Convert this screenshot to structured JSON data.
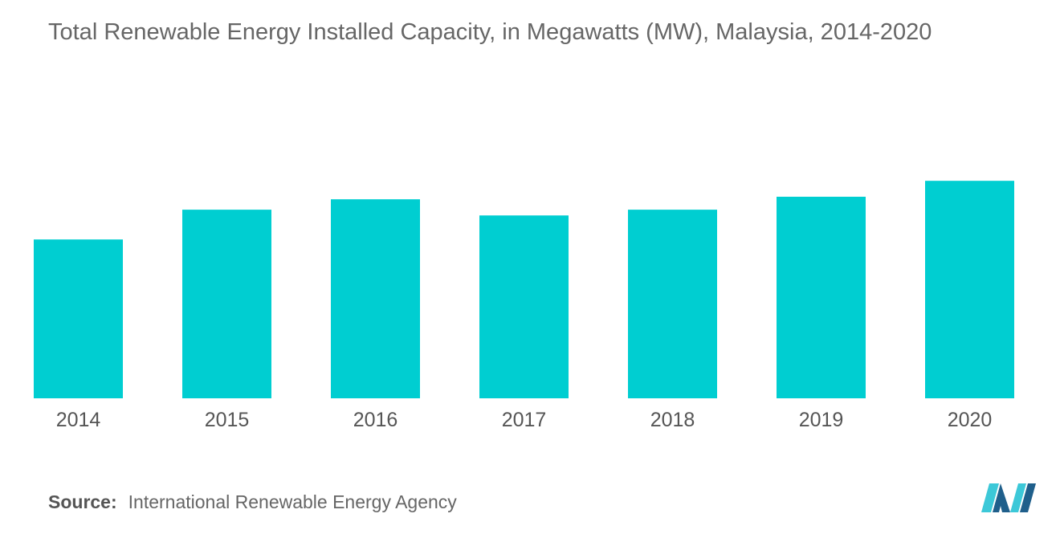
{
  "colors": {
    "bar": "#00CED1",
    "text": "#666666",
    "logo_dark": "#1F5F8B",
    "logo_light": "#3CC8D8"
  },
  "chart_data": {
    "type": "bar",
    "title": "Total Renewable Energy Installed Capacity, in Megawatts (MW), Malaysia, 2014-2020",
    "categories": [
      "2014",
      "2015",
      "2016",
      "2017",
      "2018",
      "2019",
      "2020"
    ],
    "values": [
      6880,
      8170,
      8620,
      7920,
      8170,
      8730,
      9420
    ],
    "xlabel": "",
    "ylabel": "",
    "ylim": [
      0,
      12000
    ],
    "grid": false,
    "legend": "none"
  },
  "source": {
    "label": "Source:",
    "text": "International Renewable Energy Agency"
  },
  "logo": {
    "icon": "mordor-intelligence-logo-icon"
  }
}
